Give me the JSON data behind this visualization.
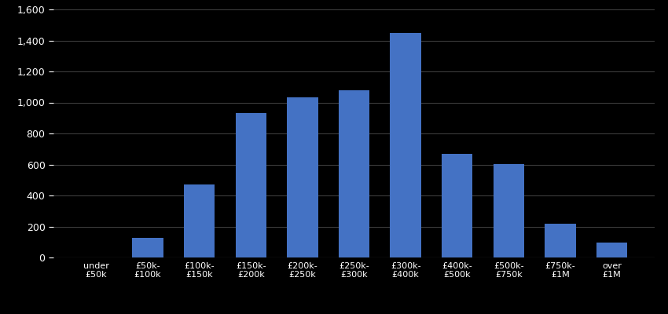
{
  "categories": [
    "under\n£50k",
    "£50k-\n£100k",
    "£100k-\n£150k",
    "£150k-\n£200k",
    "£200k-\n£250k",
    "£250k-\n£300k",
    "£300k-\n£400k",
    "£400k-\n£500k",
    "£500k-\n£750k",
    "£750k-\n£1M",
    "over\n£1M"
  ],
  "values": [
    0,
    125,
    470,
    930,
    1035,
    1080,
    1450,
    670,
    605,
    220,
    95
  ],
  "bar_color": "#4472C4",
  "background_color": "#000000",
  "text_color": "#ffffff",
  "grid_color": "#444444",
  "baseline_color": "#888888",
  "ylim": [
    0,
    1600
  ],
  "yticks": [
    0,
    200,
    400,
    600,
    800,
    1000,
    1200,
    1400,
    1600
  ]
}
